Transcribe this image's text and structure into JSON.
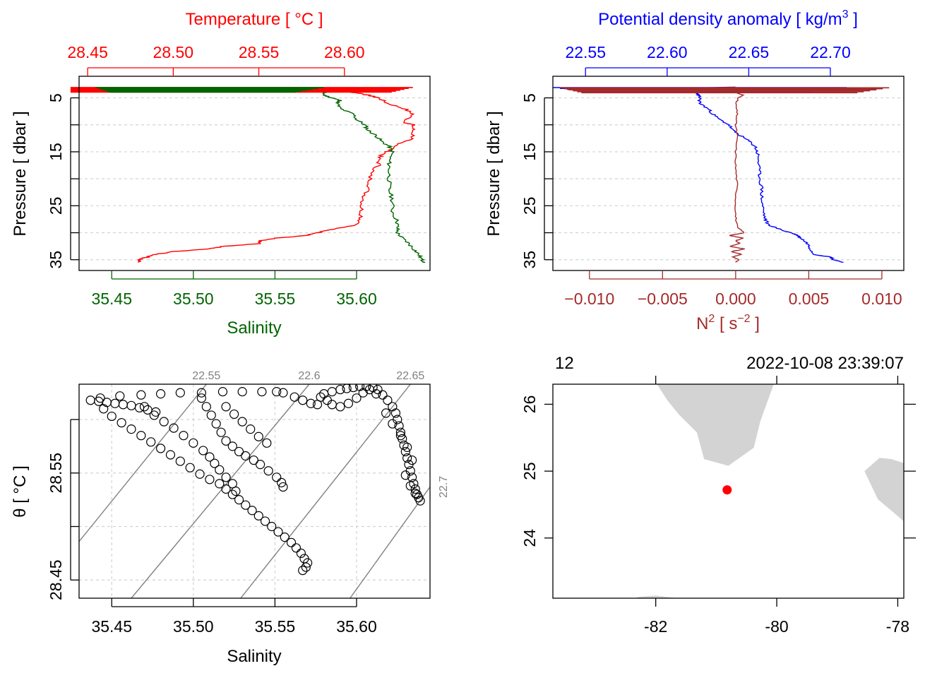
{
  "colors": {
    "temperature": "#ff0000",
    "salinity": "#006400",
    "density": "#0000ff",
    "n2": "#a52a2a",
    "grid": "#d3d3d3",
    "isopycnal": "#808080",
    "land": "#d3d3d3",
    "station": "#ff0000",
    "axis": "#000000"
  },
  "chart_data": [
    {
      "id": "ts_profile",
      "type": "line",
      "top_title": "Temperature [ °C ]",
      "bottom_title": "Salinity",
      "ylabel": "Pressure [ dbar ]",
      "ylim": [
        37,
        1
      ],
      "temperature_axis": {
        "lim": [
          28.445,
          28.65
        ],
        "ticks": [
          "28.45",
          "28.50",
          "28.55",
          "28.60"
        ]
      },
      "salinity_axis": {
        "lim": [
          35.43,
          35.645
        ],
        "ticks": [
          "35.45",
          "35.50",
          "35.55",
          "35.60"
        ]
      },
      "pressure_ticks": [
        "5",
        "15",
        "25",
        "35"
      ],
      "grid_y": [
        5,
        10,
        15,
        20,
        25,
        30,
        35
      ],
      "series": [
        {
          "name": "Temperature",
          "pressure": [
            3.2,
            3.5,
            3.8,
            4.2,
            4.6,
            5.0,
            6.0,
            7.0,
            8.0,
            9.5,
            10.0,
            11.0,
            12.5,
            13.0,
            14.0,
            15.0,
            16.0,
            17.5,
            19.0,
            21.0,
            23.0,
            25.0,
            27.0,
            28.5,
            29.5,
            30.0,
            30.5,
            31.0,
            31.5,
            32.0,
            32.5,
            33.0,
            33.5,
            34.0,
            34.5,
            35.0,
            35.5
          ],
          "values": [
            28.625,
            28.59,
            28.6,
            28.61,
            28.615,
            28.62,
            28.625,
            28.635,
            28.64,
            28.635,
            28.64,
            28.64,
            28.64,
            28.635,
            28.63,
            28.625,
            28.62,
            28.62,
            28.615,
            28.615,
            28.612,
            28.61,
            28.61,
            28.608,
            28.59,
            28.585,
            28.578,
            28.56,
            28.55,
            28.55,
            28.53,
            28.52,
            28.5,
            28.49,
            28.485,
            28.48,
            28.48
          ]
        },
        {
          "name": "Salinity",
          "pressure": [
            3.2,
            3.6,
            4.0,
            4.5,
            5.0,
            5.5,
            6.0,
            7.0,
            8.0,
            9.0,
            10.0,
            11.0,
            12.0,
            13.0,
            14.0,
            15.0,
            16.5,
            18.0,
            20.0,
            22.0,
            24.0,
            26.0,
            28.0,
            29.0,
            30.0,
            31.0,
            32.0,
            33.0,
            34.0,
            35.0,
            35.5
          ],
          "values": [
            35.58,
            35.585,
            35.58,
            35.58,
            35.585,
            35.59,
            35.588,
            35.59,
            35.598,
            35.6,
            35.605,
            35.607,
            35.612,
            35.615,
            35.62,
            35.622,
            35.62,
            35.62,
            35.62,
            35.62,
            35.622,
            35.622,
            35.625,
            35.625,
            35.625,
            35.628,
            35.632,
            35.635,
            35.638,
            35.64,
            35.642
          ]
        }
      ],
      "surface_spike_pressure": 3.6,
      "surface_spike_temperature": [
        28.44,
        28.64
      ],
      "surface_spike_salinity": [
        35.44,
        35.58
      ]
    },
    {
      "id": "density_profile",
      "type": "line",
      "top_title": "Potential density anomaly [ kg/m",
      "top_title_superscript": "3",
      "top_title_end": " ]",
      "bottom_title": "N",
      "bottom_title_superscript": "2",
      "bottom_title_unit": " [ s",
      "bottom_title_unit_superscript": "−2",
      "bottom_title_end": " ]",
      "ylabel": "Pressure [ dbar ]",
      "ylim": [
        37,
        1
      ],
      "density_axis": {
        "lim": [
          22.53,
          22.745
        ],
        "ticks": [
          "22.55",
          "22.60",
          "22.65",
          "22.70"
        ]
      },
      "n2_axis": {
        "lim": [
          -0.0125,
          0.0115
        ],
        "ticks": [
          "−0.010",
          "−0.005",
          "0.000",
          "0.005",
          "0.010"
        ]
      },
      "pressure_ticks": [
        "5",
        "15",
        "25",
        "35"
      ],
      "grid_y": [
        5,
        10,
        15,
        20,
        25,
        30,
        35
      ],
      "series": [
        {
          "name": "Potential density anomaly",
          "pressure": [
            3.2,
            3.5,
            4.0,
            4.5,
            5.0,
            6.0,
            7.0,
            8.0,
            9.0,
            10.0,
            11.0,
            12.0,
            13.0,
            14.0,
            15.0,
            16.0,
            18.0,
            20.0,
            22.0,
            24.0,
            26.0,
            27.5,
            28.5,
            29.5,
            30.0,
            30.5,
            31.0,
            32.0,
            33.0,
            34.0,
            34.5,
            35.0,
            35.5
          ],
          "values": [
            22.58,
            22.618,
            22.618,
            22.619,
            22.62,
            22.62,
            22.625,
            22.628,
            22.632,
            22.638,
            22.64,
            22.645,
            22.65,
            22.654,
            22.655,
            22.656,
            22.656,
            22.657,
            22.658,
            22.658,
            22.659,
            22.66,
            22.662,
            22.67,
            22.676,
            22.68,
            22.682,
            22.686,
            22.688,
            22.69,
            22.7,
            22.702,
            22.708
          ]
        },
        {
          "name": "N2",
          "pressure": [
            3.0,
            3.5,
            4.0,
            4.5,
            5.0,
            6.0,
            8.0,
            10.0,
            12.0,
            15.0,
            18.0,
            21.0,
            24.0,
            27.0,
            29.0,
            30.0,
            30.5,
            31.0,
            31.5,
            32.0,
            32.5,
            33.0,
            33.5,
            34.0,
            34.5,
            35.0,
            35.5
          ],
          "values": [
            0.0,
            -0.008,
            0.0,
            0.0005,
            0.0002,
            0.0,
            0.0001,
            0.0,
            0.0001,
            0.0,
            0.0,
            0.0001,
            0.0,
            0.0,
            0.0001,
            0.0006,
            -0.0004,
            0.0005,
            0.0,
            0.0003,
            -0.0004,
            0.0006,
            -0.0003,
            0.0004,
            -0.0002,
            0.0002,
            0.0
          ]
        }
      ],
      "surface_spike_pressure": 3.6,
      "surface_spike_density": [
        22.53,
        22.71
      ],
      "surface_spike_n2": [
        -0.012,
        0.0105
      ]
    },
    {
      "id": "ts_diagram",
      "type": "scatter",
      "xlabel": "Salinity",
      "ylabel": "θ [ °C ]",
      "xlim": [
        35.43,
        35.645
      ],
      "ylim": [
        28.433,
        28.633
      ],
      "x_ticks": [
        "35.45",
        "35.50",
        "35.55",
        "35.60"
      ],
      "y_ticks": [
        "28.45",
        "28.55"
      ],
      "grid_x": [
        35.45,
        35.5,
        35.55,
        35.6
      ],
      "grid_y": [
        28.45,
        28.5,
        28.55,
        28.6
      ],
      "isopycnals": [
        {
          "label": "22.55",
          "segment": [
            [
              35.43,
              28.486
            ],
            [
              35.508,
              28.633
            ]
          ]
        },
        {
          "label": "22.6",
          "segment": [
            [
              35.462,
              28.433
            ],
            [
              35.571,
              28.633
            ]
          ]
        },
        {
          "label": "22.65",
          "segment": [
            [
              35.529,
              28.433
            ],
            [
              35.633,
              28.633
            ]
          ]
        },
        {
          "label": "22.7",
          "segment": [
            [
              35.596,
              28.433
            ],
            [
              35.645,
              28.537
            ]
          ]
        }
      ],
      "points": [
        [
          35.437,
          28.618
        ],
        [
          35.442,
          28.617
        ],
        [
          35.447,
          28.616
        ],
        [
          35.452,
          28.615
        ],
        [
          35.457,
          28.614
        ],
        [
          35.462,
          28.613
        ],
        [
          35.467,
          28.611
        ],
        [
          35.472,
          28.609
        ],
        [
          35.477,
          28.607
        ],
        [
          35.443,
          28.62
        ],
        [
          35.455,
          28.622
        ],
        [
          35.468,
          28.623
        ],
        [
          35.48,
          28.624
        ],
        [
          35.492,
          28.625
        ],
        [
          35.505,
          28.625
        ],
        [
          35.518,
          28.626
        ],
        [
          35.53,
          28.626
        ],
        [
          35.542,
          28.626
        ],
        [
          35.551,
          28.626
        ],
        [
          35.445,
          28.61
        ],
        [
          35.45,
          28.603
        ],
        [
          35.456,
          28.597
        ],
        [
          35.462,
          28.591
        ],
        [
          35.468,
          28.585
        ],
        [
          35.474,
          28.579
        ],
        [
          35.48,
          28.573
        ],
        [
          35.486,
          28.567
        ],
        [
          35.492,
          28.561
        ],
        [
          35.498,
          28.555
        ],
        [
          35.504,
          28.549
        ],
        [
          35.51,
          28.544
        ],
        [
          35.516,
          28.54
        ],
        [
          35.52,
          28.535
        ],
        [
          35.524,
          28.53
        ],
        [
          35.528,
          28.525
        ],
        [
          35.532,
          28.52
        ],
        [
          35.536,
          28.515
        ],
        [
          35.54,
          28.51
        ],
        [
          35.544,
          28.505
        ],
        [
          35.548,
          28.5
        ],
        [
          35.552,
          28.495
        ],
        [
          35.556,
          28.49
        ],
        [
          35.56,
          28.485
        ],
        [
          35.563,
          28.48
        ],
        [
          35.566,
          28.475
        ],
        [
          35.568,
          28.47
        ],
        [
          35.57,
          28.466
        ],
        [
          35.569,
          28.462
        ],
        [
          35.567,
          28.459
        ],
        [
          35.47,
          28.612
        ],
        [
          35.476,
          28.604
        ],
        [
          35.482,
          28.598
        ],
        [
          35.488,
          28.592
        ],
        [
          35.494,
          28.585
        ],
        [
          35.5,
          28.578
        ],
        [
          35.506,
          28.571
        ],
        [
          35.51,
          28.565
        ],
        [
          35.513,
          28.559
        ],
        [
          35.516,
          28.553
        ],
        [
          35.52,
          28.546
        ],
        [
          35.524,
          28.54
        ],
        [
          35.526,
          28.533
        ],
        [
          35.505,
          28.62
        ],
        [
          35.508,
          28.612
        ],
        [
          35.511,
          28.604
        ],
        [
          35.514,
          28.596
        ],
        [
          35.517,
          28.588
        ],
        [
          35.52,
          28.58
        ],
        [
          35.524,
          28.575
        ],
        [
          35.528,
          28.57
        ],
        [
          35.532,
          28.566
        ],
        [
          35.537,
          28.562
        ],
        [
          35.541,
          28.558
        ],
        [
          35.546,
          28.552
        ],
        [
          35.551,
          28.546
        ],
        [
          35.554,
          28.541
        ],
        [
          35.555,
          28.537
        ],
        [
          35.52,
          28.612
        ],
        [
          35.525,
          28.605
        ],
        [
          35.53,
          28.598
        ],
        [
          35.535,
          28.591
        ],
        [
          35.54,
          28.584
        ],
        [
          35.545,
          28.578
        ],
        [
          35.555,
          28.625
        ],
        [
          35.562,
          28.621
        ],
        [
          35.567,
          28.618
        ],
        [
          35.572,
          28.615
        ],
        [
          35.576,
          28.614
        ],
        [
          35.582,
          28.618
        ],
        [
          35.578,
          28.621
        ],
        [
          35.58,
          28.624
        ],
        [
          35.585,
          28.626
        ],
        [
          35.59,
          28.628
        ],
        [
          35.594,
          28.629
        ],
        [
          35.598,
          28.63
        ],
        [
          35.602,
          28.631
        ],
        [
          35.606,
          28.631
        ],
        [
          35.61,
          28.63
        ],
        [
          35.613,
          28.628
        ],
        [
          35.616,
          28.623
        ],
        [
          35.619,
          28.618
        ],
        [
          35.622,
          28.612
        ],
        [
          35.624,
          28.606
        ],
        [
          35.625,
          28.6
        ],
        [
          35.626,
          28.594
        ],
        [
          35.627,
          28.588
        ],
        [
          35.628,
          28.582
        ],
        [
          35.629,
          28.576
        ],
        [
          35.63,
          28.57
        ],
        [
          35.631,
          28.564
        ],
        [
          35.632,
          28.558
        ],
        [
          35.633,
          28.552
        ],
        [
          35.634,
          28.546
        ],
        [
          35.635,
          28.54
        ],
        [
          35.636,
          28.535
        ],
        [
          35.637,
          28.53
        ],
        [
          35.638,
          28.527
        ],
        [
          35.639,
          28.524
        ],
        [
          35.585,
          28.614
        ],
        [
          35.59,
          28.612
        ],
        [
          35.595,
          28.615
        ],
        [
          35.6,
          28.62
        ],
        [
          35.604,
          28.625
        ],
        [
          35.608,
          28.628
        ],
        [
          35.612,
          28.624
        ],
        [
          35.618,
          28.606
        ],
        [
          35.622,
          28.596
        ],
        [
          35.627,
          28.585
        ],
        [
          35.631,
          28.574
        ],
        [
          35.634,
          28.562
        ],
        [
          35.63,
          28.548
        ],
        [
          35.633,
          28.538
        ],
        [
          35.636,
          28.531
        ]
      ]
    },
    {
      "id": "station_map",
      "type": "map",
      "station_label": "12",
      "datetime_label": "2022-10-08 23:39:07",
      "xlim": [
        -83.7,
        -77.9
      ],
      "ylim": [
        23.1,
        26.3
      ],
      "x_ticks": [
        "-82",
        "-80",
        "-78"
      ],
      "y_ticks": [
        "24",
        "25",
        "26"
      ],
      "station": {
        "lon": -80.82,
        "lat": 24.72
      },
      "coastlines": [
        [
          [
            -81.98,
            26.3
          ],
          [
            -81.8,
            26.05
          ],
          [
            -81.62,
            25.85
          ],
          [
            -81.32,
            25.58
          ],
          [
            -81.2,
            25.18
          ],
          [
            -80.8,
            25.08
          ],
          [
            -80.38,
            25.35
          ],
          [
            -80.27,
            25.75
          ],
          [
            -80.05,
            26.3
          ]
        ],
        [
          [
            -78.3,
            25.2
          ],
          [
            -78.1,
            25.18
          ],
          [
            -77.9,
            25.12
          ],
          [
            -77.9,
            24.25
          ],
          [
            -78.12,
            24.42
          ],
          [
            -78.33,
            24.58
          ],
          [
            -78.55,
            25.0
          ]
        ],
        [
          [
            -82.3,
            23.12
          ],
          [
            -82.0,
            23.14
          ],
          [
            -81.65,
            23.1
          ],
          [
            -82.3,
            23.1
          ]
        ]
      ]
    }
  ]
}
